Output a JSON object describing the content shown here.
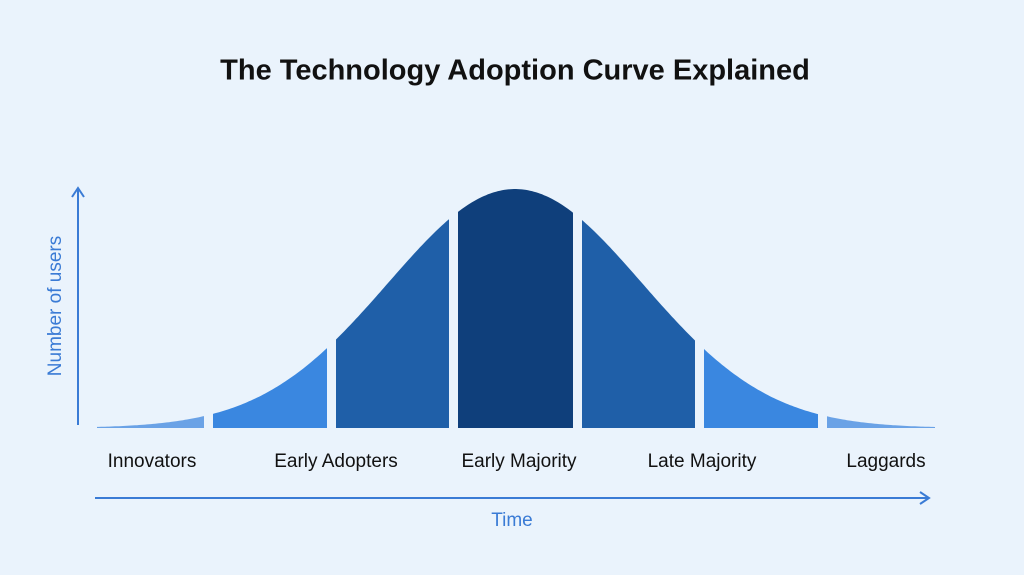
{
  "title": "The Technology Adoption Curve Explained",
  "y_axis_label": "Number of users",
  "x_axis_label": "Time",
  "segments": [
    "Innovators",
    "Early Adopters",
    "Early Majority",
    "Late Majority",
    "Laggards"
  ]
}
